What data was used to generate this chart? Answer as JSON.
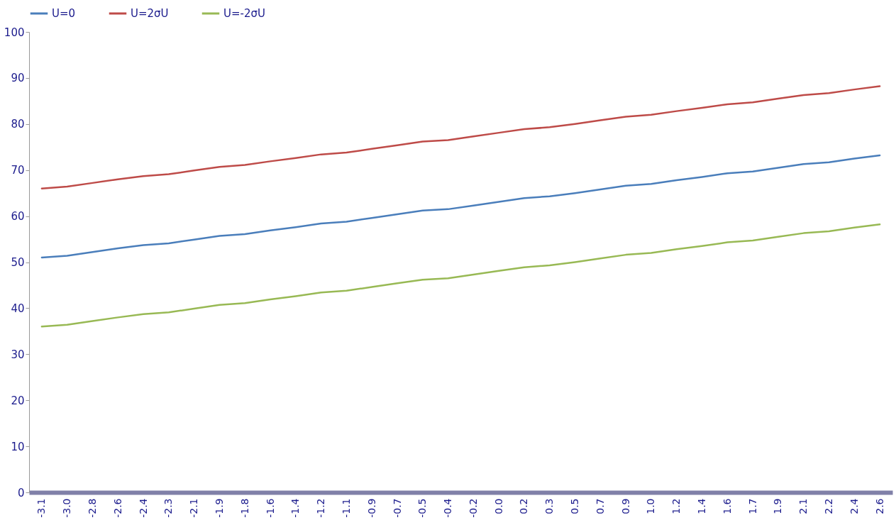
{
  "chart_data": {
    "type": "line",
    "categories": [
      "-3.1",
      "-3.0",
      "-2.8",
      "-2.6",
      "-2.4",
      "-2.3",
      "-2.1",
      "-1.9",
      "-1.8",
      "-1.6",
      "-1.4",
      "-1.2",
      "-1.1",
      "-0.9",
      "-0.7",
      "-0.5",
      "-0.4",
      "-0.2",
      "0.0",
      "0.2",
      "0.3",
      "0.5",
      "0.7",
      "0.9",
      "1.0",
      "1.2",
      "1.4",
      "1.6",
      "1.7",
      "1.9",
      "2.1",
      "2.2",
      "2.4",
      "2.6"
    ],
    "series": [
      {
        "name": "U=0",
        "color": "#4a7ebb",
        "values": [
          51.0,
          51.4,
          52.2,
          53.0,
          53.7,
          54.1,
          54.9,
          55.7,
          56.1,
          56.9,
          57.6,
          58.4,
          58.8,
          59.6,
          60.4,
          61.2,
          61.5,
          62.3,
          63.1,
          63.9,
          64.3,
          65.0,
          65.8,
          66.6,
          67.0,
          67.8,
          68.5,
          69.3,
          69.7,
          70.5,
          71.3,
          71.7,
          72.5,
          73.2
        ]
      },
      {
        "name": "U=2σU",
        "color": "#be4b48",
        "values": [
          66.0,
          66.4,
          67.2,
          68.0,
          68.7,
          69.1,
          69.9,
          70.7,
          71.1,
          71.9,
          72.6,
          73.4,
          73.8,
          74.6,
          75.4,
          76.2,
          76.5,
          77.3,
          78.1,
          78.9,
          79.3,
          80.0,
          80.8,
          81.6,
          82.0,
          82.8,
          83.5,
          84.3,
          84.7,
          85.5,
          86.3,
          86.7,
          87.5,
          88.2
        ]
      },
      {
        "name": "U=-2σU",
        "color": "#98b954",
        "values": [
          36.0,
          36.4,
          37.2,
          38.0,
          38.7,
          39.1,
          39.9,
          40.7,
          41.1,
          41.9,
          42.6,
          43.4,
          43.8,
          44.6,
          45.4,
          46.2,
          46.5,
          47.3,
          48.1,
          48.9,
          49.3,
          50.0,
          50.8,
          51.6,
          52.0,
          52.8,
          53.5,
          54.3,
          54.7,
          55.5,
          56.3,
          56.7,
          57.5,
          58.2
        ]
      }
    ],
    "ylim": [
      0,
      100
    ],
    "yticks": [
      0,
      10,
      20,
      30,
      40,
      50,
      60,
      70,
      80,
      90,
      100
    ],
    "grid": false,
    "legend": "top",
    "marker": "none",
    "line_style": "solid"
  }
}
